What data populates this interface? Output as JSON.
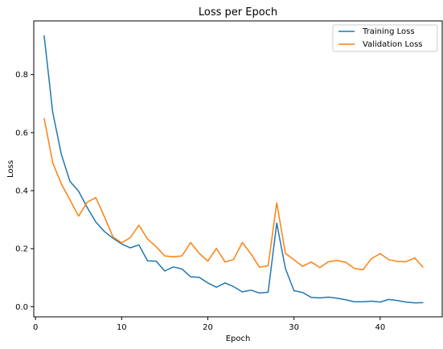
{
  "chart_data": {
    "type": "line",
    "title": "Loss per Epoch",
    "xlabel": "Epoch",
    "ylabel": "Loss",
    "xlim": [
      -0.2,
      47.2
    ],
    "ylim": [
      -0.035,
      0.985
    ],
    "xticks": [
      0,
      10,
      20,
      30,
      40
    ],
    "yticks": [
      0.0,
      0.2,
      0.4,
      0.6,
      0.8
    ],
    "xtick_labels": [
      "0",
      "10",
      "20",
      "30",
      "40"
    ],
    "ytick_labels": [
      "0.0",
      "0.2",
      "0.4",
      "0.6",
      "0.8"
    ],
    "grid": false,
    "legend_position": "top-right",
    "x": [
      1,
      2,
      3,
      4,
      5,
      6,
      7,
      8,
      9,
      10,
      11,
      12,
      13,
      14,
      15,
      16,
      17,
      18,
      19,
      20,
      21,
      22,
      23,
      24,
      25,
      26,
      27,
      28,
      29,
      30,
      31,
      32,
      33,
      34,
      35,
      36,
      37,
      38,
      39,
      40,
      41,
      42,
      43,
      44,
      45
    ],
    "series": [
      {
        "name": "Training Loss",
        "color": "#1f77b4",
        "values": [
          0.935,
          0.67,
          0.525,
          0.432,
          0.398,
          0.342,
          0.292,
          0.259,
          0.236,
          0.216,
          0.203,
          0.213,
          0.158,
          0.157,
          0.123,
          0.137,
          0.13,
          0.103,
          0.101,
          0.082,
          0.067,
          0.082,
          0.069,
          0.051,
          0.057,
          0.047,
          0.05,
          0.288,
          0.132,
          0.055,
          0.049,
          0.032,
          0.03,
          0.033,
          0.029,
          0.024,
          0.017,
          0.017,
          0.019,
          0.016,
          0.025,
          0.021,
          0.016,
          0.013,
          0.014
        ]
      },
      {
        "name": "Validation Loss",
        "color": "#ff7f0e",
        "values": [
          0.65,
          0.496,
          0.423,
          0.368,
          0.312,
          0.36,
          0.376,
          0.31,
          0.24,
          0.22,
          0.238,
          0.281,
          0.233,
          0.207,
          0.175,
          0.172,
          0.175,
          0.221,
          0.184,
          0.157,
          0.201,
          0.154,
          0.163,
          0.221,
          0.182,
          0.136,
          0.141,
          0.358,
          0.184,
          0.162,
          0.139,
          0.154,
          0.135,
          0.155,
          0.159,
          0.153,
          0.132,
          0.127,
          0.166,
          0.183,
          0.162,
          0.156,
          0.155,
          0.168,
          0.135
        ]
      }
    ]
  }
}
